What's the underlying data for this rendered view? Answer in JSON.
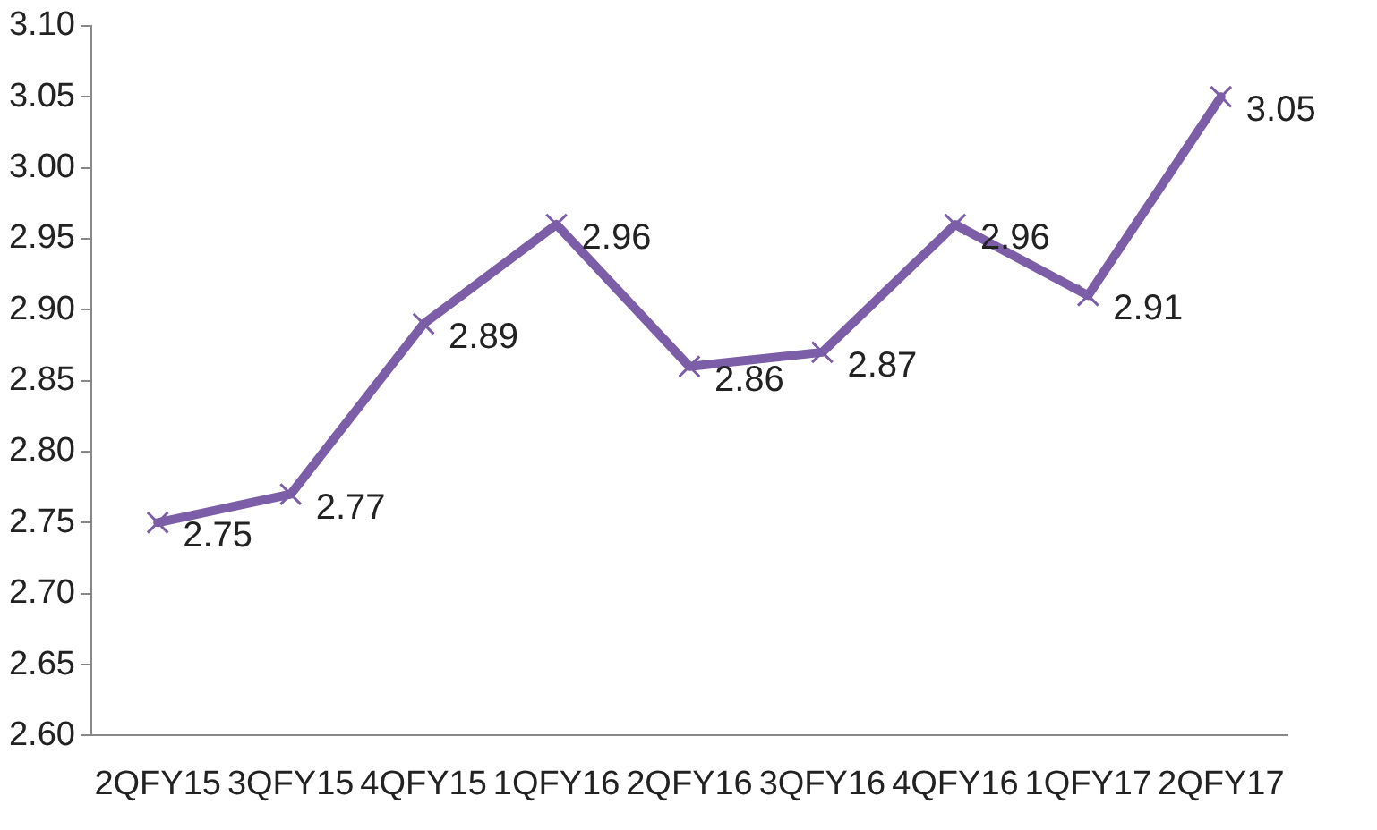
{
  "chart_data": {
    "type": "line",
    "categories": [
      "2QFY15",
      "3QFY15",
      "4QFY15",
      "1QFY16",
      "2QFY16",
      "3QFY16",
      "4QFY16",
      "1QFY17",
      "2QFY17"
    ],
    "series": [
      {
        "color": "#7b5ea7",
        "values": [
          2.75,
          2.77,
          2.89,
          2.96,
          2.86,
          2.87,
          2.96,
          2.91,
          3.05
        ]
      }
    ],
    "ylim": [
      2.6,
      3.1
    ],
    "yticks": [
      "2.60",
      "2.65",
      "2.70",
      "2.75",
      "2.80",
      "2.85",
      "2.90",
      "2.95",
      "3.00",
      "3.05",
      "3.10"
    ],
    "grid": false,
    "legend": false,
    "marker": "cross",
    "line_style": "solid",
    "data_labels": true
  }
}
